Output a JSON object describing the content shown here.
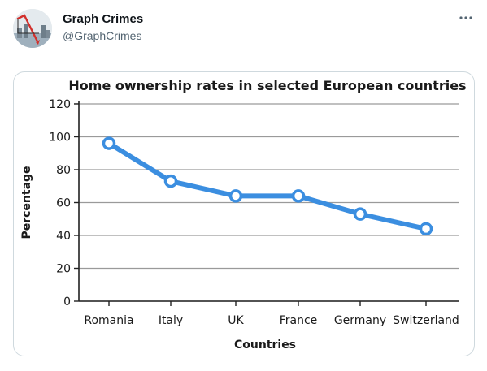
{
  "author": {
    "display_name": "Graph Crimes",
    "handle": "@GraphCrimes"
  },
  "icons": {
    "more": "more-horizontal-icon",
    "avatar": "avatar-image"
  },
  "colors": {
    "line": "#3b8ee0",
    "grid": "#9a9a9a",
    "text": "#1a1a1a"
  },
  "chart_data": {
    "type": "line",
    "title": "Home ownership rates in selected European countries",
    "xlabel": "Countries",
    "ylabel": "Percentage",
    "categories": [
      "Romania",
      "Italy",
      "UK",
      "France",
      "Germany",
      "Switzerland"
    ],
    "values": [
      96,
      73,
      64,
      64,
      53,
      44
    ],
    "ylim": [
      0,
      120
    ],
    "yticks": [
      0,
      20,
      40,
      60,
      80,
      100,
      120
    ],
    "grid": true,
    "legend": "none"
  }
}
